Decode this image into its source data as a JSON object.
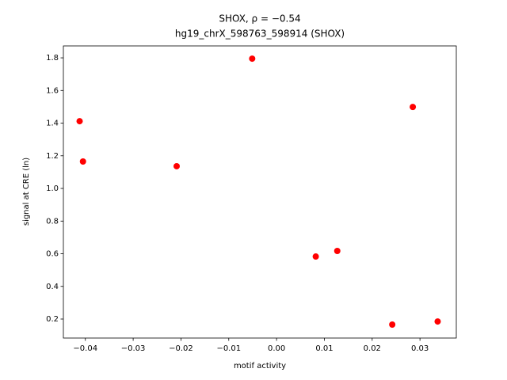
{
  "chart_data": {
    "type": "scatter",
    "title": "SHOX, ρ = −0.54",
    "subtitle": "hg19_chrX_598763_598914 (SHOX)",
    "x_label": "motif activity",
    "y_label": "signal at CRE (ln)",
    "color": "#ff0000",
    "x": [
      -0.0412,
      -0.0405,
      -0.0209,
      -0.0051,
      0.0082,
      0.0127,
      0.0242,
      0.0285,
      0.0337
    ],
    "y": [
      1.412,
      1.165,
      1.136,
      1.795,
      0.583,
      0.617,
      0.166,
      1.499,
      0.185
    ],
    "xlim": [
      -0.0446,
      0.0376
    ],
    "ylim": [
      0.0836,
      1.873
    ],
    "xticks": [
      {
        "value": -0.04,
        "label": "−0.04"
      },
      {
        "value": -0.03,
        "label": "−0.03"
      },
      {
        "value": -0.02,
        "label": "−0.02"
      },
      {
        "value": -0.01,
        "label": "−0.01"
      },
      {
        "value": 0,
        "label": "0.00"
      },
      0.01,
      0.02,
      0.03
    ],
    "yticks": [
      0.2,
      0.4,
      0.6,
      0.8,
      {
        "value": 1,
        "label": "1.0"
      },
      1.2,
      1.4,
      1.6,
      1.8
    ],
    "grid": false
  }
}
